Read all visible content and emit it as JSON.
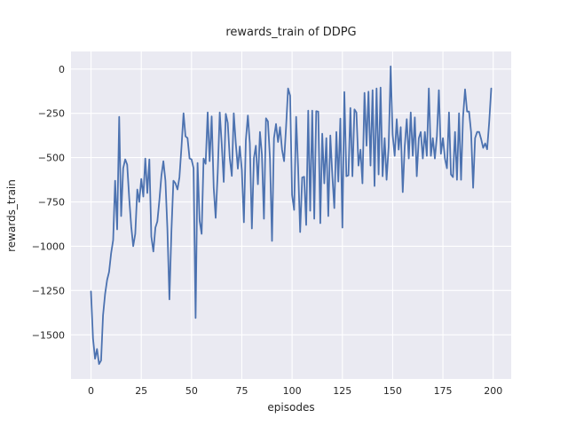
{
  "chart_data": {
    "type": "line",
    "title": "rewards_train of DDPG",
    "xlabel": "episodes",
    "ylabel": "rewards_train",
    "style": "seaborn-darkgrid",
    "grid": true,
    "legend_position": "none",
    "colors": {
      "figure_background": "#ffffff",
      "axes_background": "#eaeaf2",
      "gridline": "#ffffff",
      "line": "#4c72b0",
      "text": "#262626"
    },
    "x_ticks": [
      0,
      25,
      50,
      75,
      100,
      125,
      150,
      175,
      200
    ],
    "y_ticks": [
      0,
      -250,
      -500,
      -750,
      -1000,
      -1250,
      -1500
    ],
    "xlim": [
      -9.95,
      208.95
    ],
    "ylim": [
      -1749,
      99
    ],
    "x": {
      "start": 0,
      "step": 1,
      "count": 200
    },
    "series": [
      {
        "name": "rewards_train",
        "values": [
          -1255,
          -1520,
          -1635,
          -1580,
          -1665,
          -1645,
          -1390,
          -1270,
          -1190,
          -1145,
          -1040,
          -965,
          -630,
          -905,
          -270,
          -830,
          -560,
          -510,
          -540,
          -730,
          -890,
          -1000,
          -930,
          -680,
          -750,
          -620,
          -720,
          -505,
          -700,
          -510,
          -945,
          -1030,
          -895,
          -860,
          -740,
          -600,
          -520,
          -630,
          -900,
          -1300,
          -910,
          -630,
          -645,
          -680,
          -610,
          -440,
          -250,
          -380,
          -390,
          -505,
          -510,
          -560,
          -1405,
          -530,
          -855,
          -930,
          -505,
          -535,
          -245,
          -520,
          -267,
          -670,
          -840,
          -587,
          -245,
          -420,
          -637,
          -253,
          -303,
          -503,
          -603,
          -250,
          -420,
          -562,
          -437,
          -570,
          -865,
          -403,
          -262,
          -420,
          -900,
          -503,
          -433,
          -650,
          -355,
          -483,
          -845,
          -278,
          -295,
          -505,
          -970,
          -390,
          -310,
          -412,
          -328,
          -455,
          -520,
          -330,
          -110,
          -150,
          -710,
          -795,
          -270,
          -555,
          -920,
          -612,
          -608,
          -880,
          -235,
          -800,
          -235,
          -845,
          -238,
          -240,
          -870,
          -365,
          -645,
          -390,
          -830,
          -375,
          -605,
          -785,
          -355,
          -635,
          -280,
          -895,
          -130,
          -605,
          -600,
          -220,
          -605,
          -228,
          -245,
          -545,
          -455,
          -645,
          -135,
          -433,
          -128,
          -545,
          -120,
          -660,
          -110,
          -595,
          -105,
          -605,
          -390,
          -625,
          -440,
          15,
          -370,
          -490,
          -283,
          -455,
          -328,
          -695,
          -440,
          -283,
          -505,
          -245,
          -490,
          -273,
          -605,
          -390,
          -355,
          -505,
          -355,
          -490,
          -110,
          -490,
          -390,
          -505,
          -378,
          -120,
          -478,
          -390,
          -505,
          -560,
          -245,
          -595,
          -610,
          -355,
          -625,
          -250,
          -625,
          -273,
          -115,
          -240,
          -240,
          -355,
          -670,
          -390,
          -355,
          -355,
          -395,
          -445,
          -420,
          -453,
          -300,
          -110
        ]
      }
    ]
  }
}
